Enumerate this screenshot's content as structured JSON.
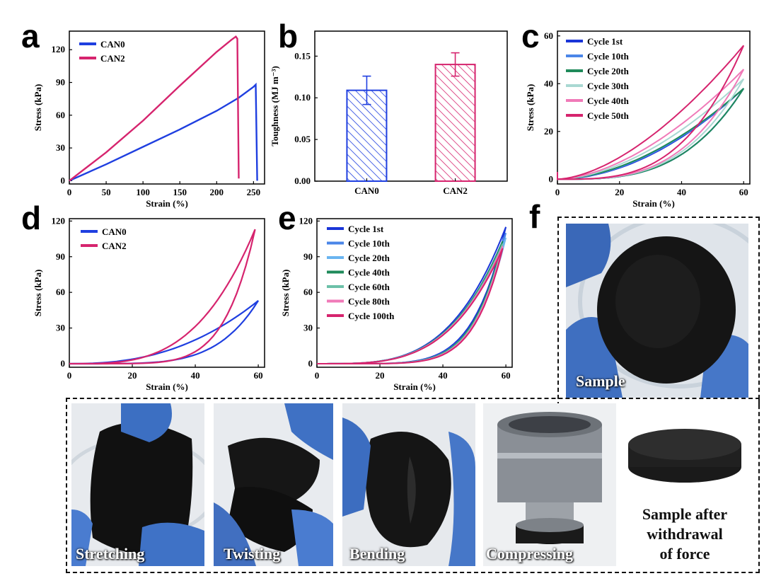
{
  "panel_letters": {
    "a": "a",
    "b": "b",
    "c": "c",
    "d": "d",
    "e": "e",
    "f": "f"
  },
  "photos": {
    "sample": "Sample",
    "stretching": "Stretching",
    "twisting": "Twisting",
    "bending": "Bending",
    "compressing": "Compressing",
    "after_line1": "Sample after",
    "after_line2": "withdrawal",
    "after_line3": "of force"
  },
  "colors": {
    "can0": "#1f3fe0",
    "can2": "#d6246e",
    "cycle_1st": "#1a35d8",
    "cycle_10th": "#4a86e8",
    "cycle_20th": "#6ab4f0",
    "cycle_30th": "#a9d8d2",
    "cycle_40th": "#1f8a5a",
    "cycle_60th": "#6cc0a8",
    "cycle_80th": "#f07ab8",
    "cycle_100th": "#d6246e",
    "cycle_50th": "#d6246e"
  },
  "chart_data": [
    {
      "id": "a",
      "type": "line",
      "title": "",
      "xlabel": "Strain (%)",
      "ylabel": "Stress (kPa)",
      "xlim": [
        0,
        265
      ],
      "ylim": [
        -3,
        137
      ],
      "xticks": [
        0,
        50,
        100,
        150,
        200,
        250
      ],
      "yticks": [
        0,
        30,
        60,
        90,
        120
      ],
      "legend_position": "top-left",
      "series": [
        {
          "name": "CAN0",
          "color": "#1f3fe0",
          "x": [
            0,
            50,
            100,
            150,
            200,
            230,
            250,
            253,
            255
          ],
          "y": [
            0,
            15,
            31,
            47,
            64,
            76,
            86,
            88,
            0
          ]
        },
        {
          "name": "CAN2",
          "color": "#d6246e",
          "x": [
            0,
            50,
            100,
            150,
            200,
            220,
            226,
            228,
            230
          ],
          "y": [
            0,
            26,
            55,
            87,
            118,
            129,
            132,
            130,
            2
          ]
        }
      ]
    },
    {
      "id": "b",
      "type": "bar",
      "title": "",
      "xlabel": "",
      "ylabel": "Toughness (MJ m⁻³)",
      "ylim": [
        0,
        0.18
      ],
      "yticks": [
        0.0,
        0.05,
        0.1,
        0.15
      ],
      "categories": [
        "CAN0",
        "CAN2"
      ],
      "values": [
        0.109,
        0.14
      ],
      "errors": [
        0.017,
        0.014
      ],
      "colors": [
        "#1f3fe0",
        "#d6246e"
      ]
    },
    {
      "id": "c",
      "type": "line",
      "title": "",
      "xlabel": "Strain (%)",
      "ylabel": "Stress (kPa)",
      "xlim": [
        0,
        62
      ],
      "ylim": [
        -2,
        62
      ],
      "xticks": [
        0,
        20,
        40,
        60
      ],
      "yticks": [
        0,
        20,
        40,
        60
      ],
      "legend_position": "top-left",
      "series": [
        {
          "name": "Cycle 1st",
          "color": "#1a35d8",
          "max_stress": 38,
          "peak_strain": 60,
          "loop": "hysteresis"
        },
        {
          "name": "Cycle 10th",
          "color": "#4a86e8",
          "max_stress": 38,
          "peak_strain": 60,
          "loop": "hysteresis"
        },
        {
          "name": "Cycle 20th",
          "color": "#1f8a5a",
          "max_stress": 38,
          "peak_strain": 60,
          "loop": "hysteresis"
        },
        {
          "name": "Cycle 30th",
          "color": "#a9d8d2",
          "max_stress": 42,
          "peak_strain": 60,
          "loop": "hysteresis"
        },
        {
          "name": "Cycle 40th",
          "color": "#f07ab8",
          "max_stress": 46,
          "peak_strain": 60,
          "loop": "hysteresis"
        },
        {
          "name": "Cycle 50th",
          "color": "#d6246e",
          "max_stress": 56,
          "peak_strain": 60,
          "loop": "hysteresis"
        }
      ]
    },
    {
      "id": "d",
      "type": "line",
      "title": "",
      "xlabel": "Strain (%)",
      "ylabel": "Stress (kPa)",
      "xlim": [
        0,
        62
      ],
      "ylim": [
        -3,
        122
      ],
      "xticks": [
        0,
        20,
        40,
        60
      ],
      "yticks": [
        0,
        30,
        60,
        90,
        120
      ],
      "legend_position": "top-left",
      "series": [
        {
          "name": "CAN0",
          "color": "#1f3fe0",
          "max_stress": 53,
          "peak_strain": 60,
          "loop": "hysteresis"
        },
        {
          "name": "CAN2",
          "color": "#d6246e",
          "max_stress": 113,
          "peak_strain": 59,
          "loop": "hysteresis"
        }
      ]
    },
    {
      "id": "e",
      "type": "line",
      "title": "",
      "xlabel": "Strain (%)",
      "ylabel": "Stress (kPa)",
      "xlim": [
        0,
        62
      ],
      "ylim": [
        -3,
        122
      ],
      "xticks": [
        0,
        20,
        40,
        60
      ],
      "yticks": [
        0,
        30,
        60,
        90,
        120
      ],
      "legend_position": "top-left",
      "series": [
        {
          "name": "Cycle 1st",
          "color": "#1a35d8",
          "max_stress": 115,
          "peak_strain": 60,
          "loop": "hysteresis"
        },
        {
          "name": "Cycle 10th",
          "color": "#4a86e8",
          "max_stress": 110,
          "peak_strain": 60,
          "loop": "hysteresis"
        },
        {
          "name": "Cycle 20th",
          "color": "#6ab4f0",
          "max_stress": 106,
          "peak_strain": 60,
          "loop": "hysteresis"
        },
        {
          "name": "Cycle 40th",
          "color": "#1f8a5a",
          "max_stress": 103,
          "peak_strain": 59,
          "loop": "hysteresis"
        },
        {
          "name": "Cycle 60th",
          "color": "#6cc0a8",
          "max_stress": 101,
          "peak_strain": 59,
          "loop": "hysteresis"
        },
        {
          "name": "Cycle 80th",
          "color": "#f07ab8",
          "max_stress": 99,
          "peak_strain": 59,
          "loop": "hysteresis"
        },
        {
          "name": "Cycle 100th",
          "color": "#d6246e",
          "max_stress": 97,
          "peak_strain": 59,
          "loop": "hysteresis"
        }
      ]
    }
  ]
}
